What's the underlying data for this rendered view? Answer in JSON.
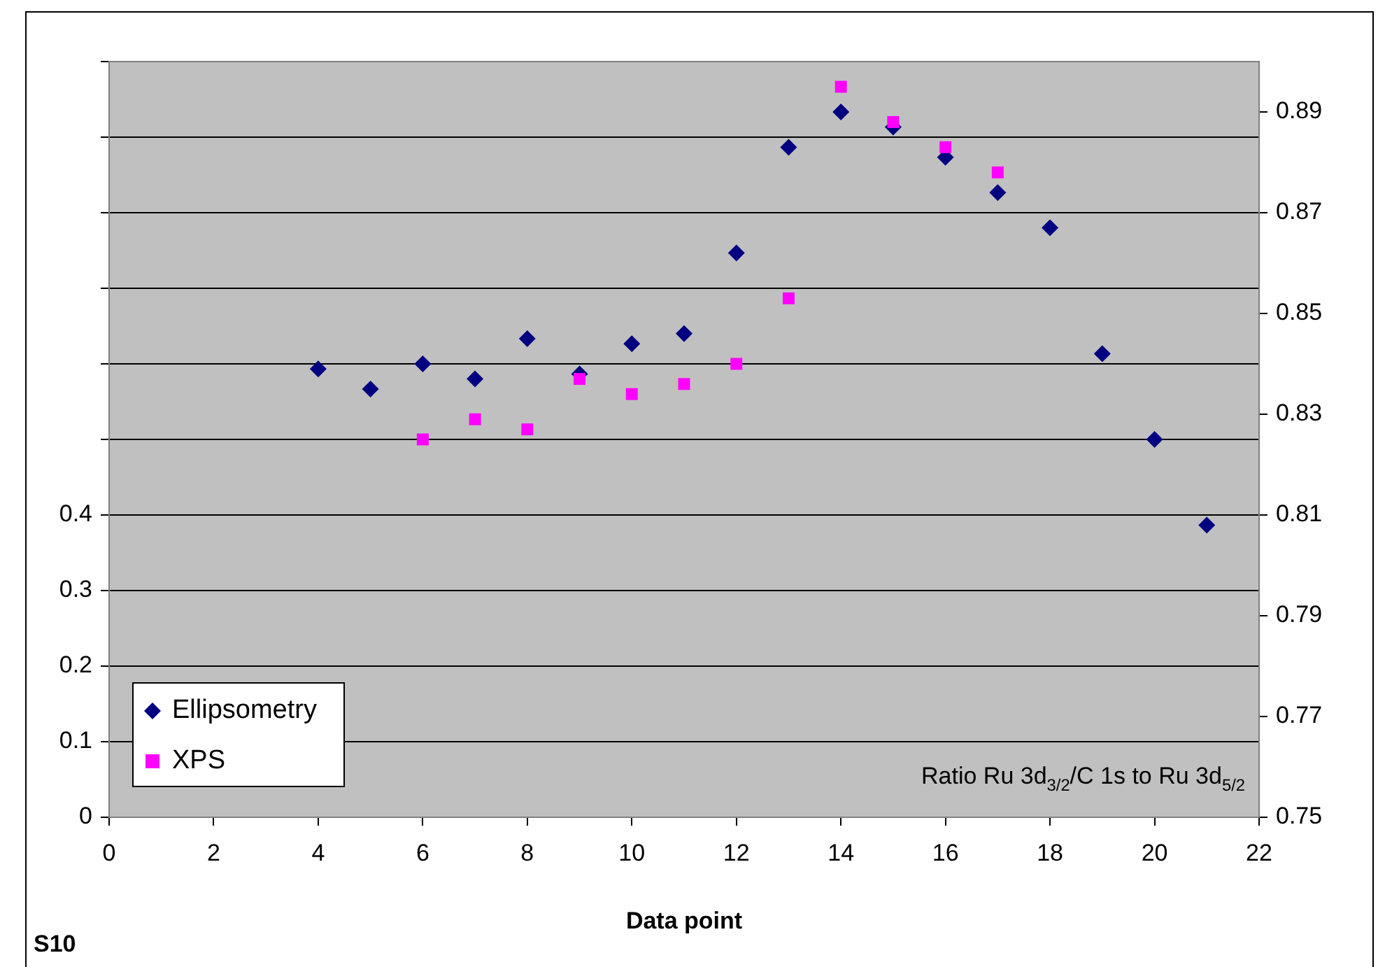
{
  "chart_data": {
    "type": "scatter",
    "xlabel": "Data point",
    "xlim": [
      0,
      22
    ],
    "xticks": [
      0,
      2,
      4,
      6,
      8,
      10,
      12,
      14,
      16,
      18,
      20,
      22
    ],
    "ylim": [
      0,
      1
    ],
    "yticks": [
      0,
      0.1,
      0.2,
      0.3,
      0.4,
      {
        "value": 0.5,
        "label": null
      },
      {
        "value": 0.6,
        "label": null
      },
      {
        "value": 0.7,
        "label": null
      },
      {
        "value": 0.8,
        "label": null
      },
      {
        "value": 0.9,
        "label": null
      },
      {
        "value": 1,
        "label": null
      }
    ],
    "y2lim": [
      0.75,
      0.9
    ],
    "y2ticks": [
      0.75,
      0.77,
      0.79,
      0.81,
      0.83,
      0.85,
      0.87,
      0.89
    ],
    "grid": "y",
    "legend": "bottom left",
    "series": [
      {
        "name": "Ellipsometry",
        "color": "#000080",
        "marker": "diamond",
        "axis": "y2",
        "x": [
          4,
          5,
          6,
          7,
          8,
          9,
          10,
          11,
          12,
          13,
          14,
          15,
          16,
          17,
          18,
          19,
          20,
          21
        ],
        "values": [
          0.839,
          0.835,
          0.84,
          0.837,
          0.845,
          0.838,
          0.844,
          0.846,
          0.862,
          0.883,
          0.89,
          0.887,
          0.881,
          0.874,
          0.867,
          0.842,
          0.825,
          0.808
        ]
      },
      {
        "name": "XPS",
        "color": "#ff00ff",
        "marker": "square",
        "axis": "y2",
        "x": [
          6,
          7,
          8,
          9,
          10,
          11,
          12,
          13,
          14,
          15,
          16,
          17
        ],
        "values": [
          0.825,
          0.829,
          0.827,
          0.837,
          0.834,
          0.836,
          0.84,
          0.853,
          0.895,
          0.888,
          0.883,
          0.878
        ]
      }
    ],
    "annotations": [
      {
        "text": "Ratio Ru 3d$_{3/2}$/C 1s to Ru 3d$_{5/2}$"
      },
      {
        "text": "S10"
      }
    ]
  }
}
